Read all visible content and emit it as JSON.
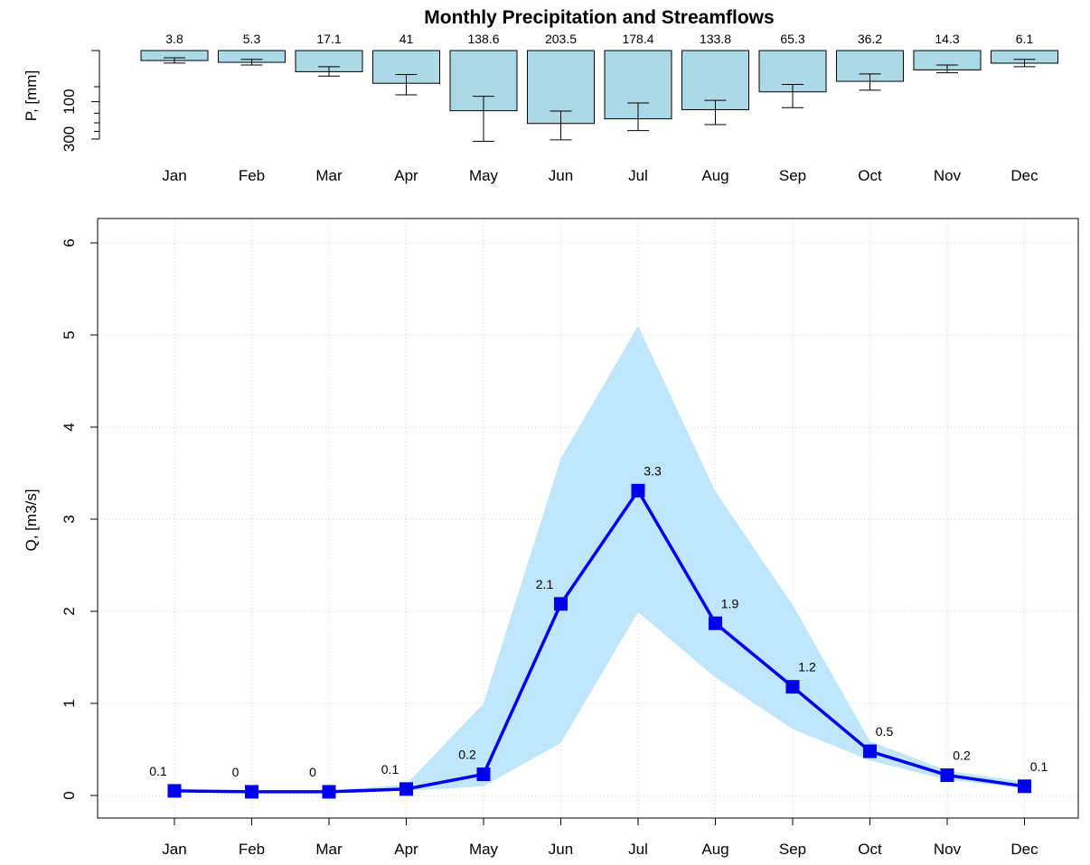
{
  "chart_data": [
    {
      "type": "bar",
      "title": "Monthly Precipitation and Streamflows",
      "ylabel": "P, [mm]",
      "yscale": "sqrt",
      "yaxis_inverted": true,
      "yticks": [
        0,
        100,
        300
      ],
      "ytick_labels": [
        "0",
        "100",
        "300"
      ],
      "categories": [
        "Jan",
        "Feb",
        "Mar",
        "Apr",
        "May",
        "Jun",
        "Jul",
        "Aug",
        "Sep",
        "Oct",
        "Nov",
        "Dec"
      ],
      "values": [
        3.8,
        5.3,
        17.1,
        41,
        138.6,
        203.5,
        178.4,
        133.8,
        65.3,
        36.2,
        14.3,
        6.1
      ],
      "value_labels": [
        "3.8",
        "5.3",
        "17.1",
        "41",
        "138.6",
        "203.5",
        "178.4",
        "133.8",
        "65.3",
        "36.2",
        "14.3",
        "6.1"
      ],
      "error_low": [
        2,
        3,
        10,
        22,
        80,
        140,
        105,
        95,
        44,
        21,
        8,
        3
      ],
      "error_high": [
        6,
        8,
        25,
        75,
        315,
        305,
        245,
        210,
        125,
        60,
        19,
        10
      ],
      "bar_color": "#add8e6",
      "bar_edge_color": "#000000"
    },
    {
      "type": "line",
      "ylabel": "Q, [m3/s]",
      "ylim": [
        0,
        6.2
      ],
      "yticks": [
        0,
        1,
        2,
        3,
        4,
        5,
        6
      ],
      "ytick_labels": [
        "0",
        "1",
        "2",
        "3",
        "4",
        "5",
        "6"
      ],
      "grid": true,
      "categories": [
        "Jan",
        "Feb",
        "Mar",
        "Apr",
        "May",
        "Jun",
        "Jul",
        "Aug",
        "Sep",
        "Oct",
        "Nov",
        "Dec"
      ],
      "values": [
        0.05,
        0.04,
        0.04,
        0.07,
        0.23,
        2.08,
        3.31,
        1.87,
        1.18,
        0.48,
        0.22,
        0.1
      ],
      "value_labels": [
        "0.1",
        "0",
        "0",
        "0.1",
        "0.2",
        "2.1",
        "3.3",
        "1.9",
        "1.2",
        "0.5",
        "0.2",
        "0.1"
      ],
      "band_low": [
        0.05,
        0.04,
        0.04,
        0.05,
        0.1,
        0.57,
        1.99,
        1.28,
        0.72,
        0.38,
        0.17,
        0.08
      ],
      "band_high": [
        0.06,
        0.05,
        0.05,
        0.12,
        1.0,
        3.66,
        5.1,
        3.3,
        2.07,
        0.59,
        0.27,
        0.15
      ],
      "line_color": "#0000ee",
      "band_color": "#bfe6fb"
    }
  ]
}
